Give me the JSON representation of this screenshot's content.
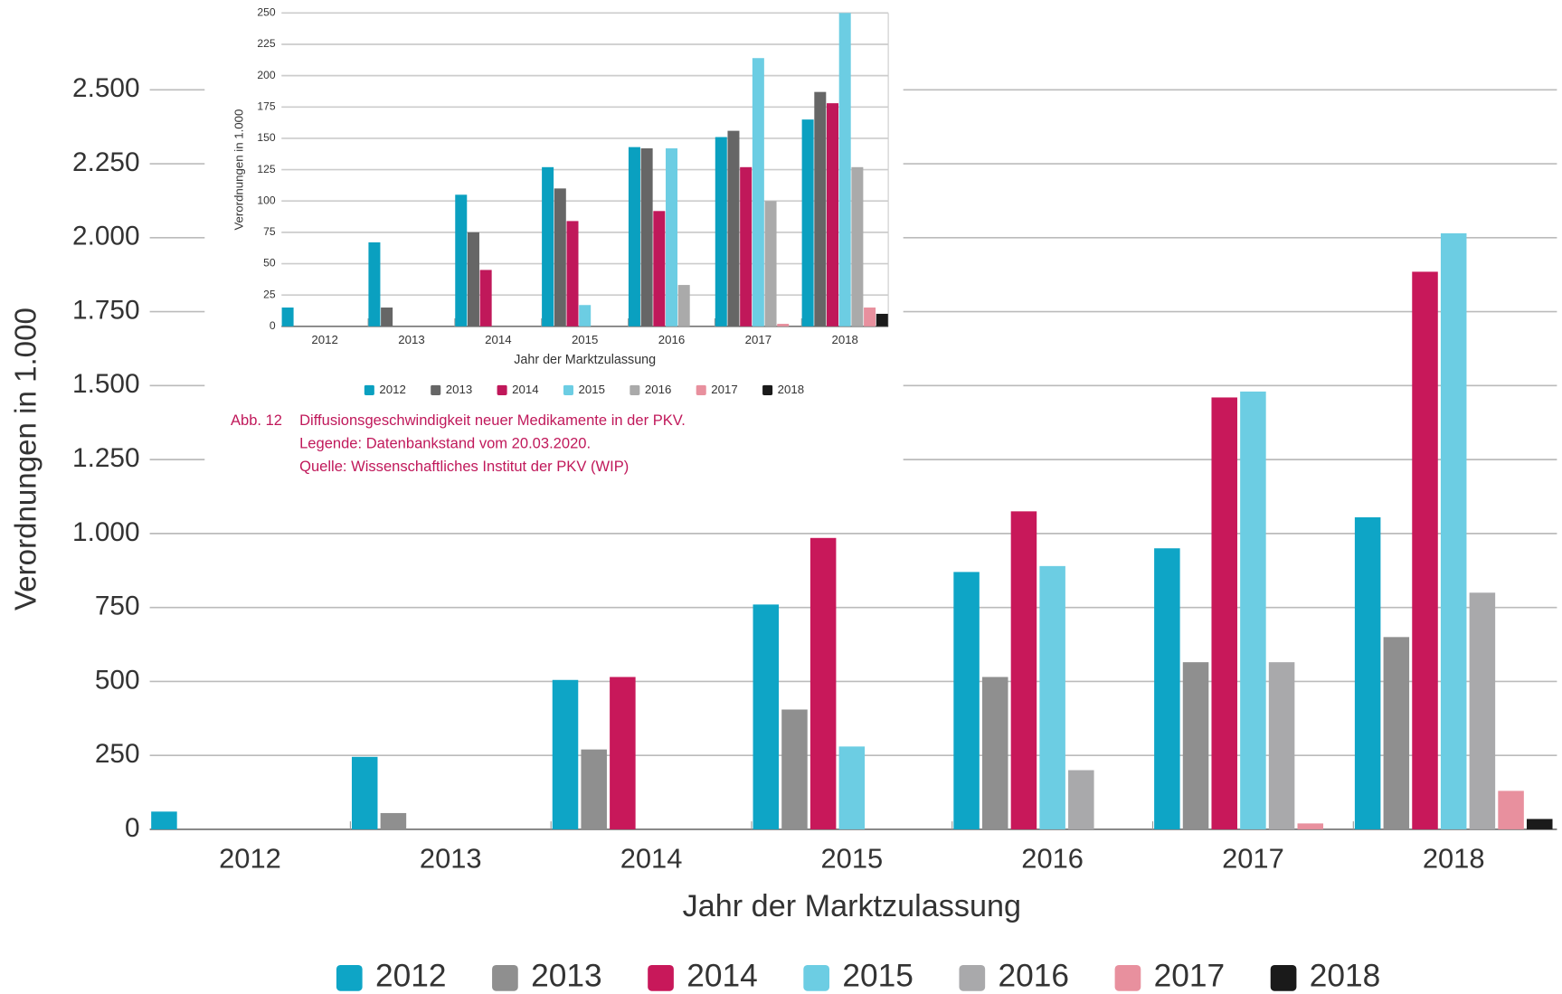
{
  "chart_data": [
    {
      "type": "bar",
      "xlabel": "Jahr der Marktzulassung",
      "ylabel": "Verordnungen in 1.000",
      "categories": [
        "2012",
        "2013",
        "2014",
        "2015",
        "2016",
        "2017",
        "2018"
      ],
      "series": [
        {
          "name": "2012",
          "color": "#0ea5c6",
          "values": [
            60,
            245,
            505,
            760,
            870,
            950,
            1055
          ]
        },
        {
          "name": "2013",
          "color": "#8f8f8f",
          "values": [
            null,
            55,
            270,
            405,
            515,
            565,
            650
          ]
        },
        {
          "name": "2014",
          "color": "#c8185a",
          "values": [
            null,
            null,
            515,
            985,
            1075,
            1460,
            1885
          ]
        },
        {
          "name": "2015",
          "color": "#6ccde3",
          "values": [
            null,
            null,
            null,
            280,
            890,
            1480,
            2015
          ]
        },
        {
          "name": "2016",
          "color": "#a9a9ab",
          "values": [
            null,
            null,
            null,
            null,
            200,
            565,
            800
          ]
        },
        {
          "name": "2017",
          "color": "#e8909e",
          "values": [
            null,
            null,
            null,
            null,
            null,
            20,
            130
          ]
        },
        {
          "name": "2018",
          "color": "#1a1a1a",
          "values": [
            null,
            null,
            null,
            null,
            null,
            null,
            35
          ]
        }
      ],
      "ylim": [
        0,
        2500
      ],
      "yticks": [
        0,
        250,
        500,
        750,
        {
          "value": 1000,
          "label": "1.000"
        },
        {
          "value": 1250,
          "label": "1.250"
        },
        {
          "value": 1500,
          "label": "1.500"
        },
        {
          "value": 1750,
          "label": "1.750"
        },
        {
          "value": 2000,
          "label": "2.000"
        },
        {
          "value": 2250,
          "label": "2.250"
        },
        {
          "value": 2500,
          "label": "2.500"
        }
      ],
      "grid": true,
      "legend": "bottom"
    },
    {
      "type": "bar",
      "xlabel": "Jahr der Marktzulassung",
      "ylabel": "Verordnungen in 1.000",
      "categories": [
        "2012",
        "2013",
        "2014",
        "2015",
        "2016",
        "2017",
        "2018"
      ],
      "series": [
        {
          "name": "2012",
          "color": "#0aa0c0",
          "values": [
            15,
            67,
            105,
            127,
            143,
            151,
            165
          ]
        },
        {
          "name": "2013",
          "color": "#666666",
          "values": [
            null,
            15,
            75,
            110,
            142,
            156,
            187
          ]
        },
        {
          "name": "2014",
          "color": "#c0185a",
          "values": [
            null,
            null,
            45,
            84,
            92,
            127,
            178
          ]
        },
        {
          "name": "2015",
          "color": "#6ccde3",
          "values": [
            null,
            null,
            null,
            17,
            142,
            214,
            250
          ]
        },
        {
          "name": "2016",
          "color": "#aaaaaa",
          "values": [
            null,
            null,
            null,
            null,
            33,
            100,
            127
          ]
        },
        {
          "name": "2017",
          "color": "#e8909e",
          "values": [
            null,
            null,
            null,
            null,
            null,
            2,
            15
          ]
        },
        {
          "name": "2018",
          "color": "#1a1a1a",
          "values": [
            null,
            null,
            null,
            null,
            null,
            null,
            10
          ]
        }
      ],
      "ylim": [
        0,
        250
      ],
      "yticks": [
        0,
        25,
        50,
        75,
        100,
        125,
        150,
        175,
        200,
        225,
        250
      ],
      "grid": true,
      "legend": "bottom",
      "caption_label": "Abb. 12",
      "caption": [
        "Diffusionsgeschwindigkeit neuer Medikamente in der PKV.",
        "Legende: Datenbankstand vom 20.03.2020.",
        "Quelle: Wissenschaftliches Institut der PKV (WIP)"
      ]
    }
  ]
}
